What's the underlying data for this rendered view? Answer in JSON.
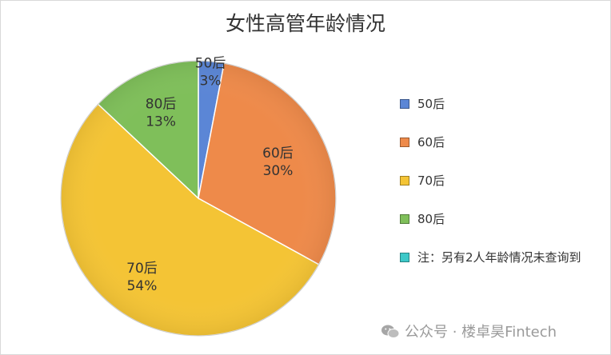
{
  "chart_data": {
    "type": "pie",
    "title": "女性高管年龄情况",
    "slices": [
      {
        "label": "50后",
        "value": 3,
        "display": "3%",
        "color": "#5b86d6"
      },
      {
        "label": "60后",
        "value": 30,
        "display": "30%",
        "color": "#ee8a4a"
      },
      {
        "label": "70后",
        "value": 54,
        "display": "54%",
        "color": "#f4c435"
      },
      {
        "label": "80后",
        "value": 13,
        "display": "13%",
        "color": "#7fbf5a"
      }
    ],
    "legend": [
      {
        "label": "50后",
        "color": "#5b86d6"
      },
      {
        "label": "60后",
        "color": "#ee8a4a"
      },
      {
        "label": "70后",
        "color": "#f4c435"
      },
      {
        "label": "80后",
        "color": "#7fbf5a"
      },
      {
        "label": "注：另有2人年龄情况未查询到",
        "color": "#3cc8c8"
      }
    ],
    "legend_placement": "right"
  },
  "watermark": {
    "icon": "wechat-icon",
    "text": "公众号 · 楼卓昊Fintech"
  }
}
